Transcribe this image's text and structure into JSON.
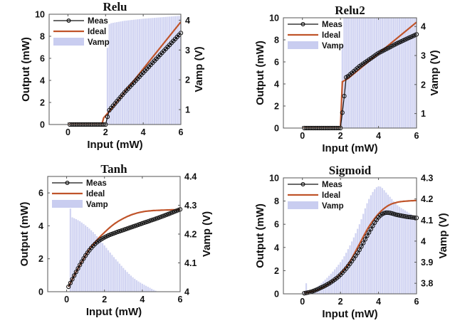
{
  "chart_data": [
    {
      "type": "line",
      "title": "Relu",
      "xlabel": "Input (mW)",
      "ylabel": "Output (mW)",
      "y2label": "Vamp  (V)",
      "xlim": [
        -1,
        6
      ],
      "ylim": [
        0,
        10
      ],
      "y2lim": [
        0.5,
        4.2
      ],
      "xticks": [
        0,
        2,
        4,
        6
      ],
      "yticks": [
        0,
        2,
        4,
        6,
        8,
        10
      ],
      "y2ticks": [
        1,
        2,
        3,
        4
      ],
      "legend": {
        "position": "top-left",
        "entries": [
          "Meas",
          "Ideal",
          "Vamp"
        ]
      },
      "colors": {
        "meas": "#111111",
        "ideal": "#c0542a",
        "vamp": "#c9cdf0"
      },
      "ideal": {
        "x": [
          0,
          1.8,
          1.9,
          2.0,
          2.1,
          6
        ],
        "y": [
          0,
          0,
          0.6,
          0.8,
          1.0,
          9.3
        ]
      },
      "meas": {
        "x_start": 0.1,
        "x_end": 6.0,
        "step": 0.1,
        "knots": {
          "x": [
            0.1,
            2.0,
            2.1,
            2.2,
            3,
            4,
            5,
            6
          ],
          "y": [
            0,
            0,
            0.7,
            1.3,
            2.9,
            4.7,
            6.5,
            8.3
          ]
        }
      },
      "vamp": {
        "x_start": 0.1,
        "x_end": 6.0,
        "step": 0.1,
        "knots": {
          "x": [
            0.1,
            2.0,
            2.05,
            2.15,
            2.3,
            3,
            4,
            5,
            6
          ],
          "y": [
            0,
            0,
            2.3,
            3.85,
            3.9,
            3.98,
            4.05,
            4.1,
            4.15
          ]
        }
      }
    },
    {
      "type": "line",
      "title": "Relu2",
      "xlabel": "Input (mW)",
      "ylabel": "Output (mW)",
      "y2label": "Vamp  (V)",
      "xlim": [
        -1,
        6
      ],
      "ylim": [
        0,
        10
      ],
      "y2lim": [
        0.5,
        4.3
      ],
      "xticks": [
        0,
        2,
        4,
        6
      ],
      "yticks": [
        0,
        2,
        4,
        6,
        8,
        10
      ],
      "y2ticks": [
        1,
        2,
        3,
        4
      ],
      "legend": {
        "position": "top-left",
        "entries": [
          "Meas",
          "Ideal",
          "Vamp"
        ]
      },
      "colors": {
        "meas": "#111111",
        "ideal": "#c0542a",
        "vamp": "#c9cdf0"
      },
      "ideal": {
        "x": [
          0,
          2.0,
          2.1,
          2.4,
          6
        ],
        "y": [
          0,
          0,
          4.2,
          4.5,
          9.6
        ]
      },
      "meas": {
        "x_start": 0.1,
        "x_end": 6.0,
        "step": 0.1,
        "knots": {
          "x": [
            0.1,
            2.0,
            2.1,
            2.2,
            2.3,
            2.4,
            3,
            4,
            5,
            6
          ],
          "y": [
            0,
            0,
            1.4,
            2.9,
            4.6,
            4.7,
            5.6,
            6.8,
            7.7,
            8.5
          ]
        }
      },
      "vamp": {
        "x_start": 0.1,
        "x_end": 6.0,
        "step": 0.1,
        "knots": {
          "x": [
            0.1,
            2.0,
            2.05,
            2.15,
            6
          ],
          "y": [
            0,
            0,
            2.4,
            4.3,
            4.3
          ]
        }
      }
    },
    {
      "type": "line",
      "title": "Tanh",
      "xlabel": "Input (mW)",
      "ylabel": "Output (mW)",
      "y2label": "Vamp  (V)",
      "xlim": [
        -1,
        6
      ],
      "ylim": [
        0,
        7
      ],
      "y2lim": [
        4,
        4.4
      ],
      "xticks": [
        0,
        2,
        4,
        6
      ],
      "yticks": [
        0,
        2,
        4,
        6
      ],
      "y2ticks": [
        4,
        4.1,
        4.2,
        4.3,
        4.4
      ],
      "legend": {
        "position": "top-left",
        "entries": [
          "Meas",
          "Ideal",
          "Vamp"
        ]
      },
      "colors": {
        "meas": "#111111",
        "ideal": "#c0542a",
        "vamp": "#c9cdf0"
      },
      "ideal": {
        "x": [
          0.1,
          0.5,
          1.0,
          1.5,
          2.0,
          2.5,
          3.0,
          3.5,
          4.0,
          4.5,
          5.0,
          5.5,
          6.0
        ],
        "y": [
          0.3,
          1.2,
          2.2,
          3.0,
          3.6,
          4.1,
          4.45,
          4.7,
          4.85,
          4.92,
          4.95,
          4.97,
          4.98
        ]
      },
      "meas": {
        "x_start": 0.1,
        "x_end": 6.0,
        "step": 0.1,
        "knots": {
          "x": [
            0.1,
            0.5,
            1.0,
            1.5,
            2.0,
            2.5,
            3.0,
            4.0,
            5.0,
            6.0
          ],
          "y": [
            0.3,
            1.2,
            2.2,
            2.9,
            3.3,
            3.55,
            3.75,
            4.15,
            4.55,
            5.0
          ]
        }
      },
      "vamp": {
        "x_start": 0.1,
        "x_end": 6.0,
        "step": 0.1,
        "knots": {
          "x": [
            0.1,
            0.15,
            0.3,
            0.8,
            1.5,
            2.5,
            3.5,
            4.5,
            4.9,
            6.0
          ],
          "y": [
            4.0,
            4.26,
            4.258,
            4.24,
            4.2,
            4.12,
            4.05,
            4.01,
            4.0,
            4.0
          ]
        }
      }
    },
    {
      "type": "line",
      "title": "Sigmoid",
      "xlabel": "Input (mW)",
      "ylabel": "Output (mW)",
      "y2label": "Vamp  (V)",
      "xlim": [
        -1,
        6
      ],
      "ylim": [
        0,
        10
      ],
      "y2lim": [
        3.75,
        4.3
      ],
      "xticks": [
        0,
        2,
        4,
        6
      ],
      "yticks": [
        0,
        2,
        4,
        6,
        8,
        10
      ],
      "y2ticks": [
        3.8,
        3.9,
        4,
        4.1,
        4.2,
        4.3
      ],
      "legend": {
        "position": "top-left",
        "entries": [
          "Meas",
          "Ideal",
          "Vamp"
        ]
      },
      "colors": {
        "meas": "#111111",
        "ideal": "#c0542a",
        "vamp": "#c9cdf0"
      },
      "ideal": {
        "x": [
          0.1,
          0.5,
          1.0,
          1.5,
          2.0,
          2.5,
          3.0,
          3.5,
          4.0,
          4.5,
          5.0,
          5.5,
          6.0
        ],
        "y": [
          0.05,
          0.2,
          0.5,
          1.0,
          1.7,
          2.8,
          4.3,
          5.8,
          6.9,
          7.6,
          7.9,
          8.0,
          8.05
        ]
      },
      "meas": {
        "x_start": 0.1,
        "x_end": 6.0,
        "step": 0.1,
        "knots": {
          "x": [
            0.1,
            0.5,
            1.0,
            1.5,
            2.0,
            2.5,
            3.0,
            3.5,
            4.0,
            4.4,
            5.0,
            5.5,
            6.0
          ],
          "y": [
            0.05,
            0.2,
            0.55,
            1.0,
            1.65,
            2.6,
            3.8,
            5.3,
            6.6,
            7.0,
            6.8,
            6.65,
            6.55
          ]
        }
      },
      "vamp": {
        "x_start": 0.1,
        "x_end": 6.0,
        "step": 0.1,
        "knots": {
          "x": [
            0.1,
            0.2,
            0.3,
            1.0,
            2.0,
            2.5,
            3.0,
            3.5,
            4.0,
            4.5,
            5.0,
            5.5,
            6.0
          ],
          "y": [
            3.76,
            3.8,
            3.76,
            3.8,
            3.9,
            3.98,
            4.08,
            4.2,
            4.26,
            4.22,
            4.17,
            4.14,
            4.11
          ]
        }
      }
    }
  ]
}
